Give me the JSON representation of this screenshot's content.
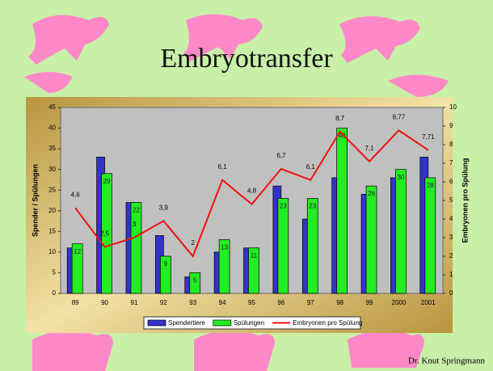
{
  "chart_data": {
    "type": "bar",
    "title": "Embryotransfer",
    "footer": "Dr. Knut Springmann",
    "y_label": "Spender / Spülungen",
    "y2_label": "Embryonen pro Spülung",
    "categories": [
      "89",
      "90",
      "91",
      "92",
      "93",
      "94",
      "95",
      "96",
      "97",
      "98",
      "99",
      "2000",
      "2001"
    ],
    "series": [
      {
        "name": "Spendertiere",
        "type": "bar",
        "color": "#3333cc",
        "values": [
          11,
          33,
          22,
          14,
          4,
          10,
          11,
          26,
          18,
          28,
          24,
          28,
          33
        ]
      },
      {
        "name": "Spülungen",
        "type": "bar",
        "color": "#22ee22",
        "values": [
          12,
          29,
          22,
          9,
          5,
          13,
          11,
          23,
          23,
          40,
          26,
          30,
          28
        ]
      },
      {
        "name": "Embryonen pro Spülung",
        "type": "line",
        "axis": "y2",
        "color": "#ee1111",
        "values": [
          4.6,
          2.5,
          3,
          3.9,
          2,
          6.1,
          4.8,
          6.7,
          6.1,
          8.7,
          7.1,
          8.77,
          7.71
        ],
        "value_labels": [
          "4,6",
          "2,5",
          "3",
          "3,9",
          "2",
          "6,1",
          "4,8",
          "6,7",
          "6,1",
          "8,7",
          "7,1",
          "8,77",
          "7,71"
        ]
      }
    ],
    "ylim": [
      0,
      45
    ],
    "yticks": [
      0,
      5,
      10,
      15,
      20,
      25,
      30,
      35,
      40,
      45
    ],
    "y2lim": [
      0,
      10
    ],
    "y2ticks": [
      0,
      1,
      2,
      3,
      4,
      5,
      6,
      7,
      8,
      9,
      10
    ],
    "legend": "bottom"
  }
}
